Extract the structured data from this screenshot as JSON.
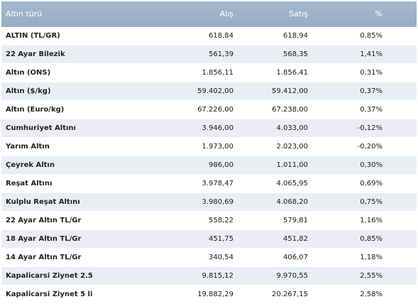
{
  "table": {
    "headers": {
      "name": "Altın türü",
      "buy": "Alış",
      "sell": "Satış",
      "pct": "%"
    },
    "rows": [
      {
        "name": "ALTIN (TL/GR)",
        "buy": "618,84",
        "sell": "618,94",
        "pct": "0,85%"
      },
      {
        "name": "22 Ayar Bilezik",
        "buy": "561,39",
        "sell": "568,35",
        "pct": "1,41%"
      },
      {
        "name": "Altın (ONS)",
        "buy": "1.856,11",
        "sell": "1.856,41",
        "pct": "0,31%"
      },
      {
        "name": "Altın ($/kg)",
        "buy": "59.402,00",
        "sell": "59.412,00",
        "pct": "0,37%"
      },
      {
        "name": "Altın (Euro/kg)",
        "buy": "67.226,00",
        "sell": "67.238,00",
        "pct": "0,37%"
      },
      {
        "name": "Cumhuriyet Altını",
        "buy": "3.946,00",
        "sell": "4.033,00",
        "pct": "-0,12%"
      },
      {
        "name": "Yarım Altın",
        "buy": "1.973,00",
        "sell": "2.023,00",
        "pct": "-0,20%"
      },
      {
        "name": "Çeyrek Altın",
        "buy": "986,00",
        "sell": "1.011,00",
        "pct": "0,30%"
      },
      {
        "name": "Reşat Altını",
        "buy": "3.978,47",
        "sell": "4.065,95",
        "pct": "0,69%"
      },
      {
        "name": "Kulplu Reşat Altını",
        "buy": "3.980,69",
        "sell": "4.068,20",
        "pct": "0,75%"
      },
      {
        "name": "22 Ayar Altın TL/Gr",
        "buy": "558,22",
        "sell": "579,81",
        "pct": "1,16%"
      },
      {
        "name": "18 Ayar Altın TL/Gr",
        "buy": "451,75",
        "sell": "451,82",
        "pct": "0,85%"
      },
      {
        "name": "14 Ayar Altın TL/Gr",
        "buy": "340,54",
        "sell": "406,07",
        "pct": "1,18%"
      },
      {
        "name": "Kapalicarsi Ziynet 2.5",
        "buy": "9.815,12",
        "sell": "9.970,55",
        "pct": "2,55%"
      },
      {
        "name": "Kapalicarsi Ziynet 5 li",
        "buy": "19.882,29",
        "sell": "20.267,15",
        "pct": "2,58%"
      }
    ]
  },
  "colors": {
    "header_bg": "#9fb5ca",
    "header_text": "#ffffff",
    "alt_row_bg": "#e9eef4",
    "row_bg": "#ffffff"
  }
}
